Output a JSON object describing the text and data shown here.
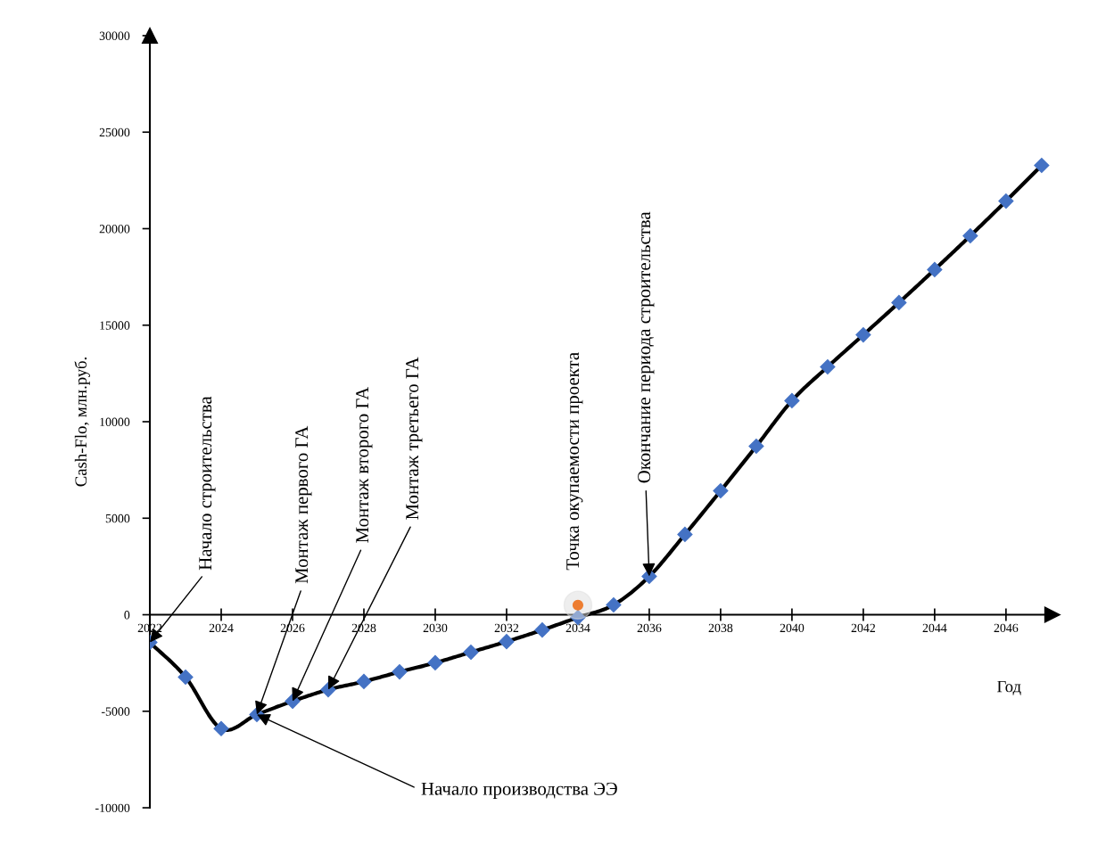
{
  "chart_data": {
    "type": "line",
    "xlabel": "Год",
    "ylabel": "Cash-Flo, млн.руб.",
    "x": [
      2022,
      2023,
      2024,
      2025,
      2026,
      2027,
      2028,
      2029,
      2030,
      2031,
      2032,
      2033,
      2034,
      2035,
      2036,
      2037,
      2038,
      2039,
      2040,
      2041,
      2042,
      2043,
      2044,
      2045,
      2046,
      2047
    ],
    "series": [
      {
        "color": "#4472c4",
        "values": [
          -1430,
          -3230,
          -5900,
          -5170,
          -4480,
          -3880,
          -3460,
          -2960,
          -2490,
          -1940,
          -1390,
          -790,
          -140,
          510,
          1990,
          4160,
          6420,
          8730,
          11090,
          12840,
          14500,
          16170,
          17880,
          19630,
          21430,
          23280
        ]
      },
      {
        "type": "scatter",
        "color": "#ed7d31",
        "marker": "circle",
        "x": [
          2034
        ],
        "values": [
          500
        ]
      }
    ],
    "marker": "diamond",
    "line_style": "solid",
    "grid": false,
    "legend": false,
    "xlim": [
      2022,
      2047.3
    ],
    "ylim": [
      -10000,
      30000
    ],
    "xticks": [
      2022,
      2024,
      2026,
      2028,
      2030,
      2032,
      2034,
      2036,
      2038,
      2040,
      2042,
      2044,
      2046
    ],
    "yticks": [
      -10000,
      -5000,
      0,
      5000,
      10000,
      15000,
      20000,
      25000,
      30000
    ],
    "annotations": [
      {
        "text": "Начало строительства",
        "x": 2022,
        "y": -1430
      },
      {
        "text": "Монтаж первого ГА",
        "x": 2025,
        "y": -5170
      },
      {
        "text": "Монтаж второго ГА",
        "x": 2026,
        "y": -4480
      },
      {
        "text": "Монтаж третьего ГА",
        "x": 2027,
        "y": -3880
      },
      {
        "text": "Точка окупаемости проекта",
        "x": 2034,
        "y": 500
      },
      {
        "text": "Окончание периода строительства",
        "x": 2036,
        "y": 1990
      },
      {
        "text": "Начало производства ЭЭ",
        "x": 2025,
        "y": -5170
      }
    ]
  }
}
